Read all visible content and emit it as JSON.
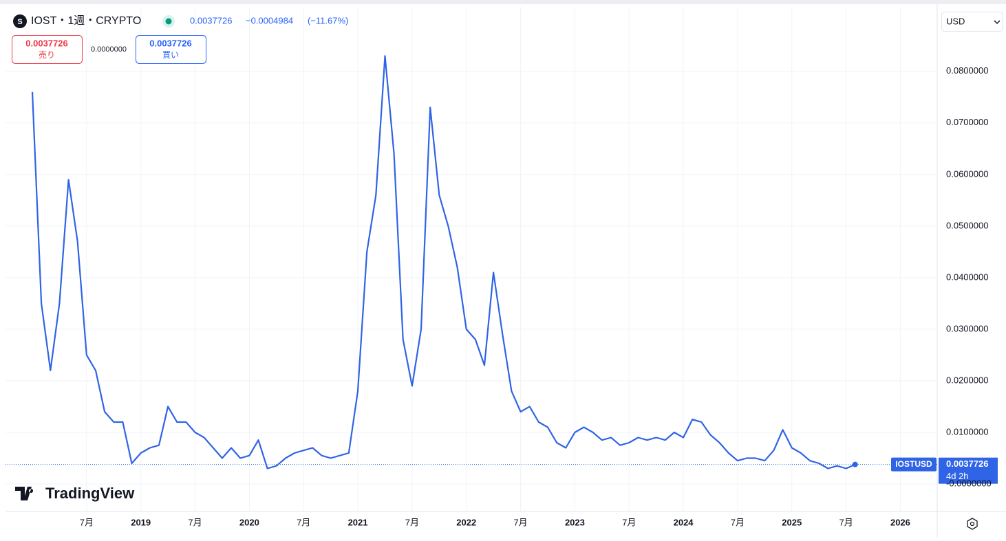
{
  "chart_data": {
    "type": "line",
    "title": "IOST・1週・CRYPTO",
    "last": "0.0037726",
    "change": "−0.0004984",
    "change_pct": "(−11.67%)",
    "sell_price": "0.0037726",
    "sell_label": "売り",
    "spread": "0.0000000",
    "buy_price": "0.0037726",
    "buy_label": "買い",
    "currency": "USD",
    "symbol": "IOSTUSD",
    "last_price": 0.0037726,
    "countdown": "4d 2h",
    "brand": "TradingView",
    "color": "#2f64e6",
    "grid": true,
    "categories": [
      null,
      null,
      null,
      null,
      null,
      null,
      "7月",
      null,
      null,
      null,
      null,
      null,
      "2019",
      null,
      null,
      null,
      null,
      null,
      "7月",
      null,
      null,
      null,
      null,
      null,
      "2020",
      null,
      null,
      null,
      null,
      null,
      "7月",
      null,
      null,
      null,
      null,
      null,
      "2021",
      null,
      null,
      null,
      null,
      null,
      "7月",
      null,
      null,
      null,
      null,
      null,
      "2022",
      null,
      null,
      null,
      null,
      null,
      "7月",
      null,
      null,
      null,
      null,
      null,
      "2023",
      null,
      null,
      null,
      null,
      null,
      "7月",
      null,
      null,
      null,
      null,
      null,
      "2024",
      null,
      null,
      null,
      null,
      null,
      "7月",
      null,
      null,
      null,
      null,
      null,
      "2025",
      null,
      null,
      null,
      null,
      null,
      "7月",
      null,
      null,
      null,
      null,
      null,
      "2026"
    ],
    "values": [
      0.076,
      0.035,
      0.022,
      0.035,
      0.059,
      0.047,
      0.025,
      0.022,
      0.014,
      0.012,
      0.012,
      0.004,
      0.006,
      0.007,
      0.0075,
      0.015,
      0.012,
      0.012,
      0.01,
      0.009,
      0.007,
      0.005,
      0.007,
      0.005,
      0.0055,
      0.0085,
      0.003,
      0.0035,
      0.005,
      0.006,
      0.0065,
      0.007,
      0.0055,
      0.005,
      0.0055,
      0.006,
      0.018,
      0.045,
      0.056,
      0.083,
      0.064,
      0.028,
      0.019,
      0.03,
      0.073,
      0.056,
      0.05,
      0.042,
      0.03,
      0.028,
      0.023,
      0.041,
      0.029,
      0.018,
      0.014,
      0.015,
      0.012,
      0.011,
      0.008,
      0.007,
      0.01,
      0.011,
      0.01,
      0.0085,
      0.009,
      0.0075,
      0.008,
      0.009,
      0.0085,
      0.009,
      0.0085,
      0.01,
      0.009,
      0.0125,
      0.012,
      0.0095,
      0.008,
      0.006,
      0.0045,
      0.005,
      0.005,
      0.0045,
      0.0065,
      0.0105,
      0.007,
      0.006,
      0.0045,
      0.004,
      0.003,
      0.0035,
      0.003,
      0.0037726,
      null,
      null,
      null,
      null,
      null
    ],
    "ylim": [
      -0.0052,
      0.0925
    ],
    "yticks": [
      {
        "value": 0,
        "label": "-0.0000000"
      },
      {
        "value": 0.01,
        "label": "0.0100000"
      },
      {
        "value": 0.02,
        "label": "0.0200000"
      },
      {
        "value": 0.03,
        "label": "0.0300000"
      },
      {
        "value": 0.04,
        "label": "0.0400000"
      },
      {
        "value": 0.05,
        "label": "0.0500000"
      },
      {
        "value": 0.06,
        "label": "0.0600000"
      },
      {
        "value": 0.07,
        "label": "0.0700000"
      },
      {
        "value": 0.08,
        "label": "0.0800000"
      }
    ]
  }
}
